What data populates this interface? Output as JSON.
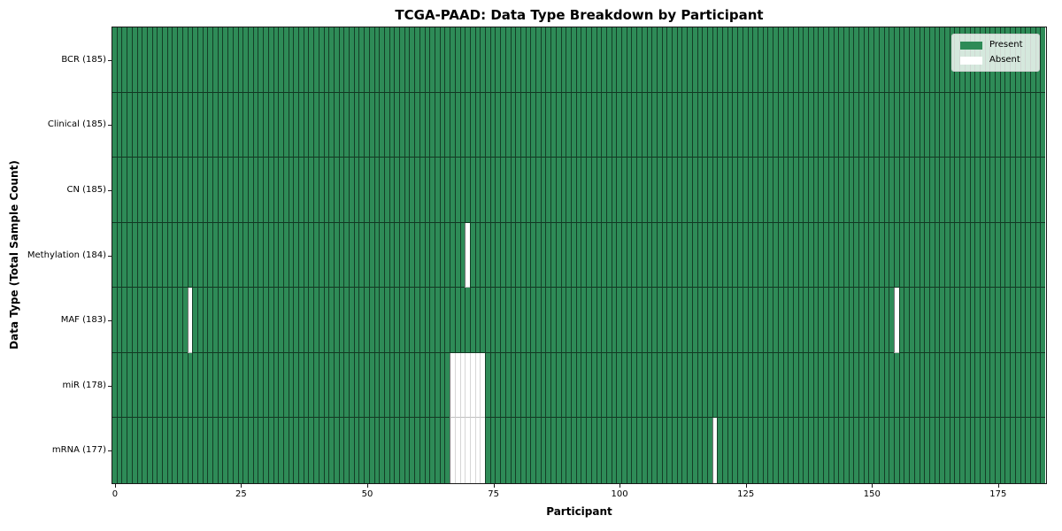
{
  "figure": {
    "title": "TCGA-PAAD: Data Type Breakdown by Participant",
    "xlabel": "Participant",
    "ylabel": "Data Type (Total Sample Count)"
  },
  "legend": {
    "items": [
      {
        "label": "Present",
        "color": "#2e8b57"
      },
      {
        "label": "Absent",
        "color": "#ffffff"
      }
    ]
  },
  "chart_data": {
    "type": "heatmap",
    "title": "TCGA-PAAD: Data Type Breakdown by Participant",
    "xlabel": "Participant",
    "ylabel": "Data Type (Total Sample Count)",
    "n_participants": 185,
    "x_ticks": [
      0,
      25,
      50,
      75,
      100,
      125,
      150,
      175
    ],
    "xlim": [
      -0.5,
      184.5
    ],
    "legend_entries": [
      "Present",
      "Absent"
    ],
    "legend_position": "upper right",
    "grid": false,
    "colors": {
      "present": "#2e8b57",
      "absent": "#ffffff",
      "bar_edge_on_green": "rgba(0,0,0,0.55)",
      "bar_edge_on_white": "rgba(0,0,0,0.16)",
      "row_separator": "rgba(0,0,0,0.6)",
      "spine": "#1a1a1a"
    },
    "rows": [
      {
        "label": "BCR (185)",
        "data_type": "BCR",
        "total_samples": 185,
        "absent_participants": []
      },
      {
        "label": "Clinical (185)",
        "data_type": "Clinical",
        "total_samples": 185,
        "absent_participants": []
      },
      {
        "label": "CN (185)",
        "data_type": "CN",
        "total_samples": 185,
        "absent_participants": []
      },
      {
        "label": "Methylation (184)",
        "data_type": "Methylation",
        "total_samples": 184,
        "absent_participants": [
          70
        ]
      },
      {
        "label": "MAF (183)",
        "data_type": "MAF",
        "total_samples": 183,
        "absent_participants": [
          15,
          155
        ]
      },
      {
        "label": "miR (178)",
        "data_type": "miR",
        "total_samples": 178,
        "absent_participants": [
          67,
          68,
          69,
          70,
          71,
          72,
          73
        ]
      },
      {
        "label": "mRNA (177)",
        "data_type": "mRNA",
        "total_samples": 177,
        "absent_participants": [
          67,
          68,
          69,
          70,
          71,
          72,
          73,
          119
        ]
      }
    ]
  }
}
